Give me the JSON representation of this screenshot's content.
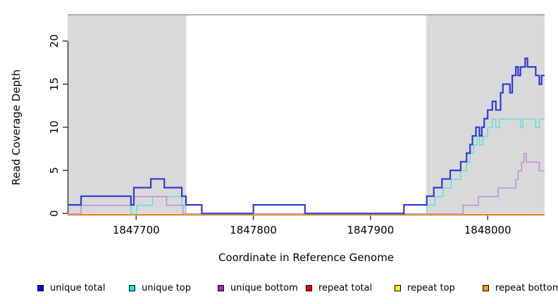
{
  "chart_data": {
    "type": "line",
    "subtype": "step-coverage",
    "title": "",
    "xlabel": "Coordinate in Reference Genome",
    "ylabel": "Read Coverage Depth",
    "xlim": [
      1847641.5,
      1848048.6
    ],
    "ylim": [
      0,
      23
    ],
    "xticks": [
      1847700,
      1847800,
      1847900,
      1848000
    ],
    "yticks": [
      0,
      5,
      10,
      15,
      20
    ],
    "grid": false,
    "legend_position": "bottom",
    "plot_bg": "#ffffff",
    "shaded_region_color": "#d9d9d9",
    "top_border_color": "#999999",
    "axis_color": "#333333",
    "shaded_regions": [
      {
        "name": "left-shaded-region",
        "x0": 1847641.5,
        "x1": 1847742.7
      },
      {
        "name": "right-shaded-region",
        "x0": 1847947.6,
        "x1": 1848048.6
      }
    ],
    "series": [
      {
        "name": "unique total",
        "color": "#2f3ad9",
        "line_width": 2.2,
        "steps": [
          [
            1847641.5,
            1
          ],
          [
            1847653,
            2
          ],
          [
            1847695.5,
            1
          ],
          [
            1847698,
            3
          ],
          [
            1847712.5,
            4
          ],
          [
            1847724,
            3
          ],
          [
            1847739,
            2
          ],
          [
            1847742.5,
            1
          ],
          [
            1847756,
            0
          ],
          [
            1847800,
            1
          ],
          [
            1847844,
            0
          ],
          [
            1847928.5,
            1
          ],
          [
            1847948,
            2
          ],
          [
            1847954,
            3
          ],
          [
            1847961,
            4
          ],
          [
            1847968,
            5
          ],
          [
            1847977,
            6
          ],
          [
            1847982,
            7
          ],
          [
            1847985,
            8
          ],
          [
            1847987,
            9
          ],
          [
            1847990,
            10
          ],
          [
            1847993,
            9
          ],
          [
            1847995,
            10
          ],
          [
            1847997,
            11
          ],
          [
            1848000,
            12
          ],
          [
            1848004,
            13
          ],
          [
            1848007,
            12
          ],
          [
            1848011,
            14
          ],
          [
            1848013,
            15
          ],
          [
            1848019,
            14
          ],
          [
            1848021,
            16
          ],
          [
            1848024,
            17
          ],
          [
            1848026,
            16
          ],
          [
            1848028,
            17
          ],
          [
            1848032,
            18
          ],
          [
            1848034,
            17
          ],
          [
            1848041,
            16
          ],
          [
            1848044,
            15
          ],
          [
            1848046,
            16
          ]
        ]
      },
      {
        "name": "unique top",
        "color": "#58dfdf",
        "line_width": 1.4,
        "steps": [
          [
            1847641.5,
            1
          ],
          [
            1847695.5,
            0
          ],
          [
            1847700.5,
            1
          ],
          [
            1847714,
            2
          ],
          [
            1847739,
            1
          ],
          [
            1847742.5,
            0
          ],
          [
            1847948,
            1
          ],
          [
            1847955,
            2
          ],
          [
            1847962,
            3
          ],
          [
            1847969,
            4
          ],
          [
            1847977,
            5
          ],
          [
            1847982,
            6
          ],
          [
            1847985,
            7
          ],
          [
            1847988,
            8
          ],
          [
            1847991,
            9
          ],
          [
            1847993,
            8
          ],
          [
            1847996,
            9
          ],
          [
            1848000,
            10
          ],
          [
            1848004,
            11
          ],
          [
            1848007,
            10
          ],
          [
            1848010,
            11
          ],
          [
            1848028,
            10
          ],
          [
            1848030,
            11
          ],
          [
            1848041,
            10
          ],
          [
            1848044,
            11
          ]
        ]
      },
      {
        "name": "unique bottom",
        "color": "#b78cd9",
        "line_width": 1.4,
        "steps": [
          [
            1847641.5,
            0
          ],
          [
            1847653,
            1
          ],
          [
            1847698,
            2
          ],
          [
            1847726,
            1
          ],
          [
            1847740,
            0
          ],
          [
            1847979,
            1
          ],
          [
            1847992,
            2
          ],
          [
            1848009,
            3
          ],
          [
            1848024,
            4
          ],
          [
            1848026,
            5
          ],
          [
            1848029,
            6
          ],
          [
            1848031,
            7
          ],
          [
            1848033,
            6
          ],
          [
            1848044,
            5
          ]
        ]
      },
      {
        "name": "repeat total",
        "color": "#e2607e",
        "line_width": 1.3,
        "steps": [
          [
            1847641.5,
            0
          ]
        ]
      },
      {
        "name": "repeat top",
        "color": "#f2e340",
        "line_width": 1.3,
        "steps": [
          [
            1847641.5,
            0
          ]
        ]
      },
      {
        "name": "repeat bottom",
        "color": "#ff9d0e",
        "line_width": 1.6,
        "steps": [
          [
            1847641.5,
            0
          ]
        ]
      }
    ],
    "legend": [
      {
        "label": "unique total",
        "color": "#0000f0"
      },
      {
        "label": "unique top",
        "color": "#00eeee"
      },
      {
        "label": "unique bottom",
        "color": "#9932cc"
      },
      {
        "label": "repeat total",
        "color": "#ee0000"
      },
      {
        "label": "repeat top",
        "color": "#ffff00"
      },
      {
        "label": "repeat bottom",
        "color": "#ff9d0e"
      }
    ]
  }
}
